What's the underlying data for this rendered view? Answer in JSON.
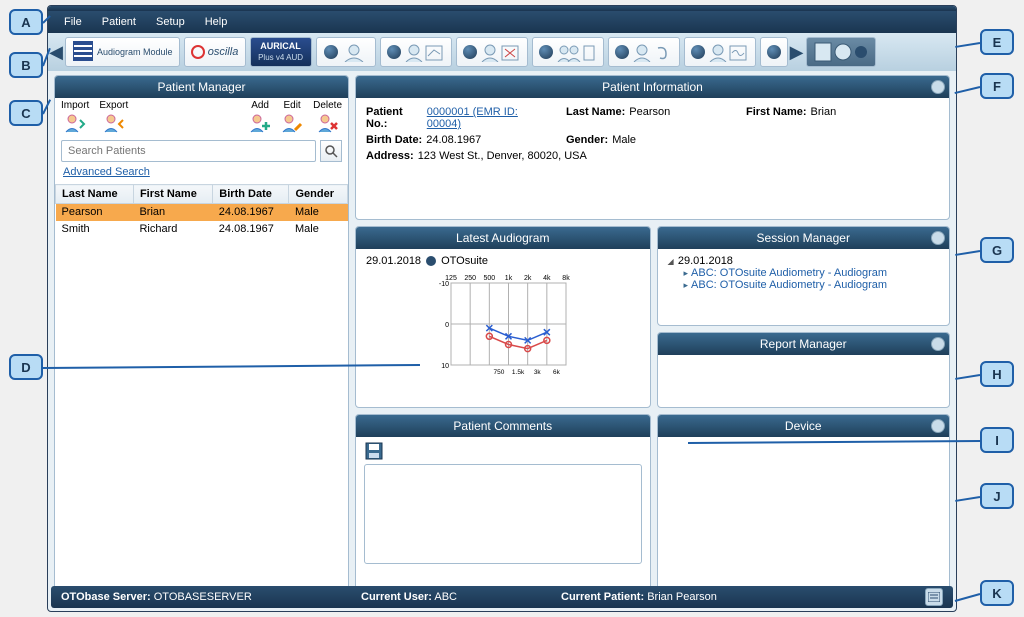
{
  "menu": {
    "file": "File",
    "patient": "Patient",
    "setup": "Setup",
    "help": "Help"
  },
  "toolbar": {
    "audiogram_module": "Audiogram Module",
    "oscilla": "oscilla",
    "aurical": "AURICAL",
    "aurical_sub": "Plus v4 AUD"
  },
  "patient_manager": {
    "title": "Patient Manager",
    "import": "Import",
    "export": "Export",
    "add": "Add",
    "edit": "Edit",
    "delete": "Delete",
    "search_placeholder": "Search Patients",
    "advanced_search": "Advanced Search",
    "columns": {
      "last": "Last Name",
      "first": "First Name",
      "birth": "Birth Date",
      "gender": "Gender"
    },
    "rows": [
      {
        "last": "Pearson",
        "first": "Brian",
        "birth": "24.08.1967",
        "gender": "Male",
        "selected": true
      },
      {
        "last": "Smith",
        "first": "Richard",
        "birth": "24.08.1967",
        "gender": "Male",
        "selected": false
      }
    ]
  },
  "patient_info": {
    "title": "Patient Information",
    "labels": {
      "no": "Patient No.:",
      "last": "Last Name:",
      "first": "First Name:",
      "birth": "Birth Date:",
      "gender": "Gender:",
      "address": "Address:"
    },
    "no_link": "0000001 (EMR ID: 00004)",
    "last": "Pearson",
    "first": "Brian",
    "birth": "24.08.1967",
    "gender": "Male",
    "address": "123 West St., Denver, 80020, USA"
  },
  "latest_audiogram": {
    "title": "Latest Audiogram",
    "date": "29.01.2018",
    "source": "OTOsuite",
    "chart": {
      "x_labels": [
        "125",
        "250",
        "500",
        "1k",
        "2k",
        "4k",
        "8k"
      ],
      "x_minor_labels": [
        "750",
        "1.5k",
        "3k",
        "6k"
      ],
      "y_range": [
        -10,
        10
      ],
      "y_step": 10,
      "width": 115,
      "height": 100,
      "grid_color": "#b0b0b0",
      "series": [
        {
          "name": "right",
          "marker": "o",
          "color": "#d94a4a",
          "points": [
            [
              2,
              3
            ],
            [
              3,
              5
            ],
            [
              4,
              6
            ],
            [
              5,
              4
            ]
          ]
        },
        {
          "name": "left",
          "marker": "x",
          "color": "#2a5ed0",
          "points": [
            [
              2,
              1
            ],
            [
              3,
              3
            ],
            [
              4,
              4
            ],
            [
              5,
              2
            ]
          ]
        }
      ]
    }
  },
  "session_manager": {
    "title": "Session Manager",
    "date": "29.01.2018",
    "items": [
      "ABC: OTOsuite Audiometry - Audiogram",
      "ABC: OTOsuite Audiometry - Audiogram"
    ]
  },
  "patient_comments": {
    "title": "Patient Comments"
  },
  "report_manager": {
    "title": "Report Manager"
  },
  "device": {
    "title": "Device"
  },
  "status": {
    "server_label": "OTObase Server:",
    "server": "OTOBASESERVER",
    "user_label": "Current User:",
    "user": "ABC",
    "patient_label": "Current Patient:",
    "patient": "Brian Pearson"
  },
  "callouts": {
    "A": "A",
    "B": "B",
    "C": "C",
    "D": "D",
    "E": "E",
    "F": "F",
    "G": "G",
    "H": "H",
    "I": "I",
    "J": "J",
    "K": "K"
  }
}
